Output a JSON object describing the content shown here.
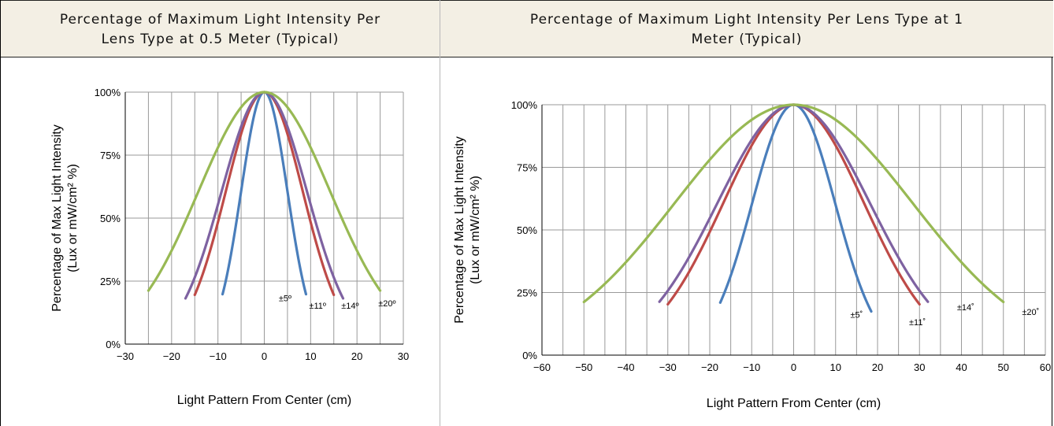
{
  "headers": {
    "left_line1": "Percentage of Maximum Light Intensity Per",
    "left_line2": "Lens Type at 0.5 Meter (Typical)",
    "right_line1": "Percentage of Maximum Light Intensity Per Lens Type at 1",
    "right_line2": "Meter (Typical)"
  },
  "chart_data": [
    {
      "type": "line",
      "title": "Percentage of Maximum Light Intensity Per Lens Type at 0.5 Meter (Typical)",
      "xlabel": "Light Pattern From Center (cm)",
      "ylabel_line1": "Percentage of Max Light Intensity",
      "ylabel_line2": "(Lux or mW/cm² %)",
      "xlim": [
        -30,
        30
      ],
      "ylim": [
        0,
        100
      ],
      "xticks": [
        "−30",
        "−20",
        "−10",
        "0",
        "10",
        "20",
        "30"
      ],
      "xtick_values": [
        -30,
        -20,
        -10,
        0,
        10,
        20,
        30
      ],
      "yticks": [
        "0%",
        "25%",
        "50%",
        "75%",
        "100%"
      ],
      "ytick_values": [
        0,
        25,
        50,
        75,
        100
      ],
      "x_grid_step": 5,
      "grid": true,
      "series": [
        {
          "name": "±5º",
          "color": "#4a7ebb",
          "halfwidth": 9,
          "sigma": 5.0,
          "label": "±5º",
          "label_x": 4.5,
          "label_y": 17
        },
        {
          "name": "±11º",
          "color": "#be4b48",
          "halfwidth": 15,
          "sigma": 8.3,
          "label": "±11º",
          "label_x": 11.5,
          "label_y": 14
        },
        {
          "name": "±14º",
          "color": "#7e62a1",
          "halfwidth": 17,
          "sigma": 9.2,
          "label": "±14º",
          "label_x": 18.5,
          "label_y": 14
        },
        {
          "name": "±20º",
          "color": "#98b954",
          "halfwidth": 25,
          "sigma": 14.2,
          "label": "±20º",
          "label_x": 26.5,
          "label_y": 15
        }
      ]
    },
    {
      "type": "line",
      "title": "Percentage of Maximum Light Intensity Per Lens Type at 1 Meter (Typical)",
      "xlabel": "Light Pattern From Center (cm)",
      "ylabel_line1": "Percentage of Max Light Intensity",
      "ylabel_line2": "(Lux or mW/cm² %)",
      "xlim": [
        -60,
        60
      ],
      "ylim": [
        0,
        100
      ],
      "xticks": [
        "−60",
        "−50",
        "−40",
        "−30",
        "−20",
        "−10",
        "0",
        "10",
        "20",
        "30",
        "40",
        "50",
        "60"
      ],
      "xtick_values": [
        -60,
        -50,
        -40,
        -30,
        -20,
        -10,
        0,
        10,
        20,
        30,
        40,
        50,
        60
      ],
      "yticks": [
        "0%",
        "25%",
        "50%",
        "75%",
        "100%"
      ],
      "ytick_values": [
        0,
        25,
        50,
        75,
        100
      ],
      "x_grid_step": 5,
      "grid": true,
      "series": [
        {
          "name": "±5˚",
          "color": "#4a7ebb",
          "halfwidth": 17.5,
          "sigma": 9.9,
          "xmin": -17.5,
          "xmax": 18.5,
          "label": "±5˚",
          "label_x": 15,
          "label_y": 15
        },
        {
          "name": "±11˚",
          "color": "#be4b48",
          "halfwidth": 30,
          "sigma": 16.8,
          "label": "±11˚",
          "label_x": 29.5,
          "label_y": 12
        },
        {
          "name": "±14˚",
          "color": "#7e62a1",
          "halfwidth": 32,
          "sigma": 18.2,
          "label": "±14˚",
          "label_x": 41,
          "label_y": 18
        },
        {
          "name": "±20˚",
          "color": "#98b954",
          "halfwidth": 50,
          "sigma": 28.4,
          "label": "±20˚",
          "label_x": 56.5,
          "label_y": 16
        }
      ]
    }
  ]
}
